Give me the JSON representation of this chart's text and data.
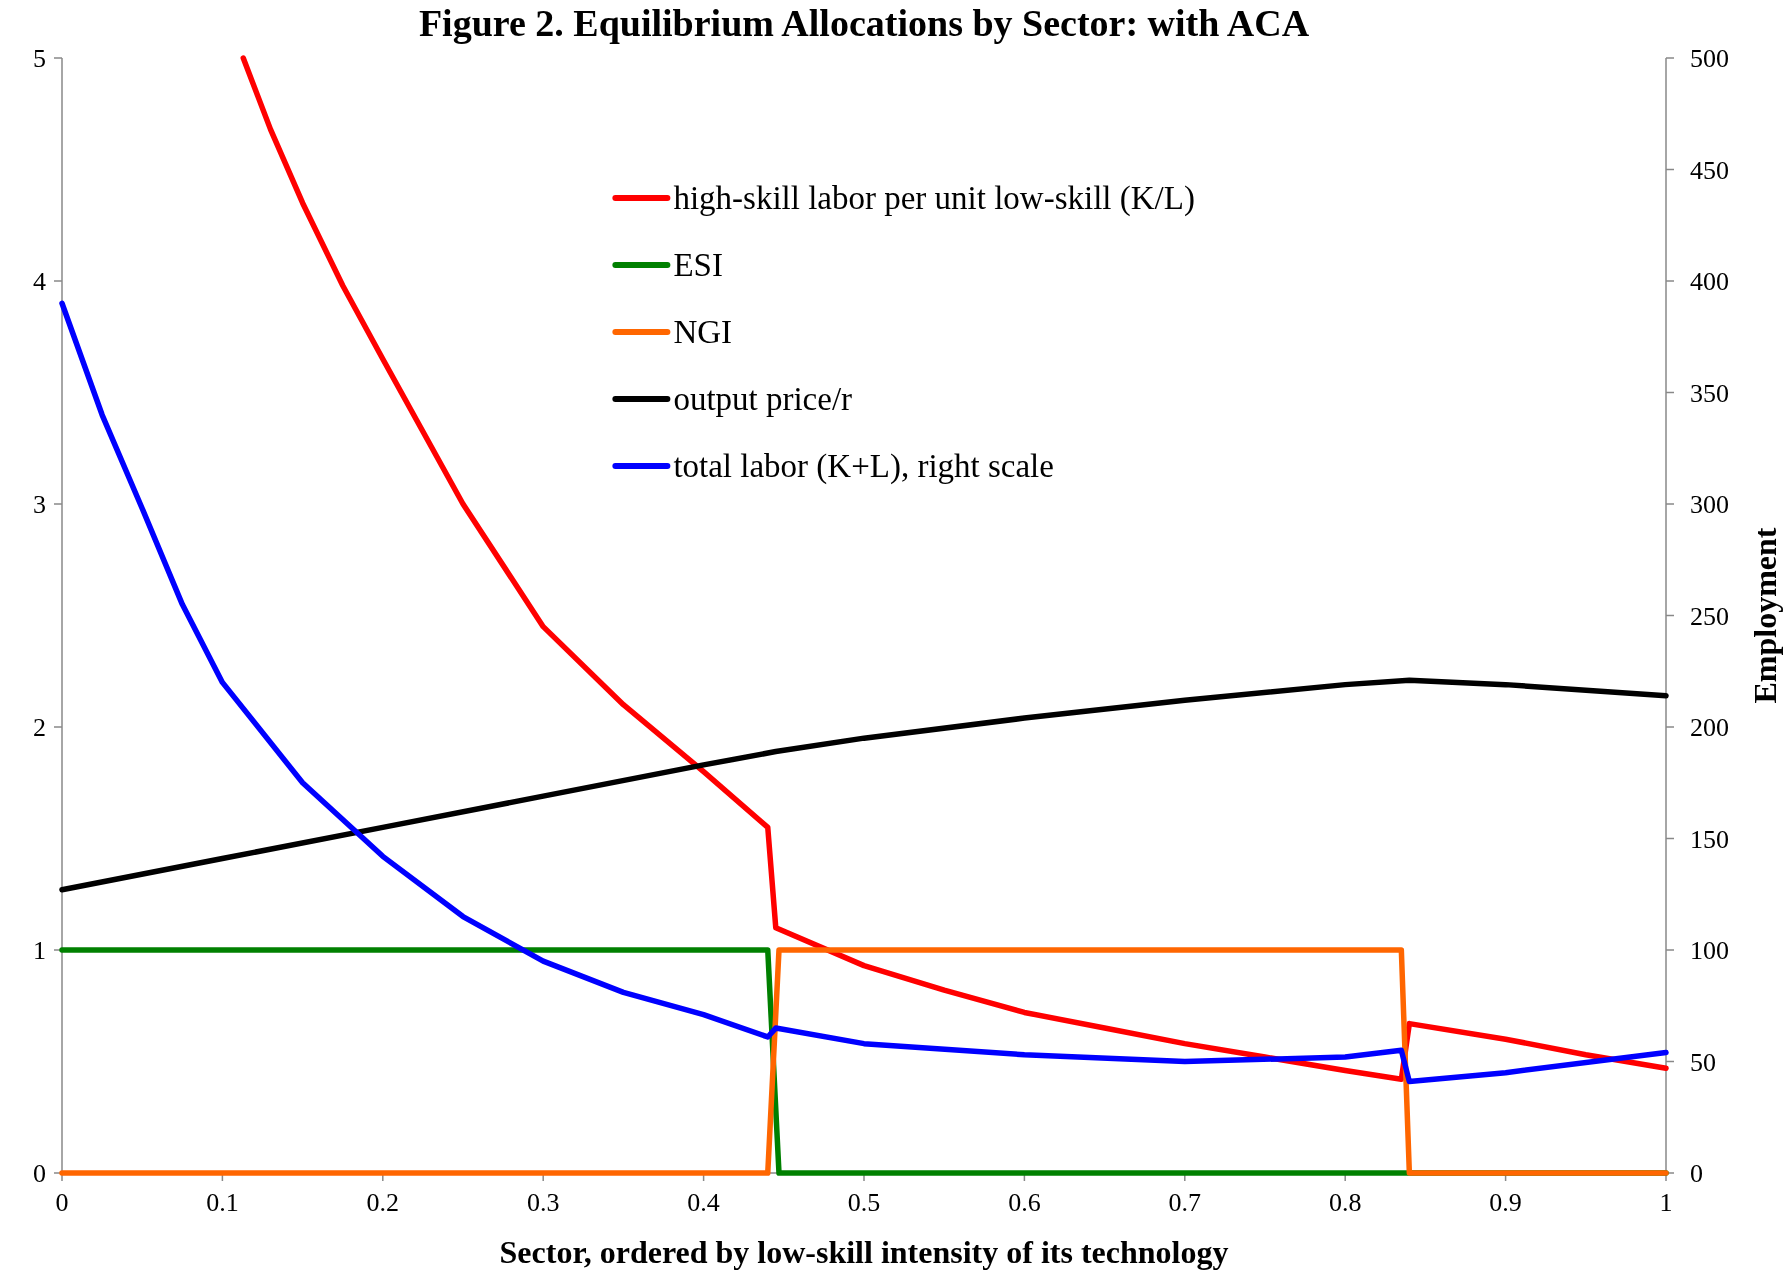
{
  "chart_data": {
    "type": "line",
    "title": "Figure 2.  Equilibrium Allocations by Sector: with ACA",
    "xlabel": "Sector, ordered by low-skill intensity of its technology",
    "y2label": "Employment",
    "xlim": [
      0,
      1
    ],
    "xticks": [
      0,
      0.1,
      0.2,
      0.3,
      0.4,
      0.5,
      0.6,
      0.7,
      0.8,
      0.9,
      1
    ],
    "ylim": [
      0,
      5
    ],
    "yticks": [
      0,
      1,
      2,
      3,
      4,
      5
    ],
    "y2lim": [
      0,
      500
    ],
    "y2ticks": [
      0,
      50,
      100,
      150,
      200,
      250,
      300,
      350,
      400,
      450,
      500
    ],
    "grid": false,
    "legend": "top",
    "marker": "none",
    "line_style": "solid",
    "series": [
      {
        "name": "high-skill labor per unit low-skill (K/L)",
        "color": "#ff0000",
        "x": [
          0.113,
          0.13,
          0.15,
          0.175,
          0.2,
          0.25,
          0.3,
          0.35,
          0.4,
          0.44,
          0.445,
          0.5,
          0.55,
          0.6,
          0.65,
          0.7,
          0.75,
          0.8,
          0.835,
          0.84,
          0.9,
          0.95,
          1
        ],
        "values": [
          5.0,
          4.68,
          4.35,
          3.98,
          3.65,
          3.0,
          2.45,
          2.1,
          1.8,
          1.55,
          1.1,
          0.93,
          0.82,
          0.72,
          0.65,
          0.58,
          0.52,
          0.46,
          0.42,
          0.67,
          0.6,
          0.53,
          0.47
        ]
      },
      {
        "name": "ESI",
        "color": "#008000",
        "x": [
          0,
          0.44,
          0.447,
          1
        ],
        "values": [
          1,
          1,
          0,
          0
        ]
      },
      {
        "name": "NGI",
        "color": "#ff6600",
        "x": [
          0,
          0.44,
          0.447,
          0.835,
          0.84,
          1
        ],
        "values": [
          0,
          0,
          1,
          1,
          0,
          0
        ]
      },
      {
        "name": "output price/r",
        "color": "#000000",
        "x": [
          0,
          0.1,
          0.2,
          0.3,
          0.4,
          0.445,
          0.5,
          0.6,
          0.7,
          0.8,
          0.84,
          0.9,
          1
        ],
        "values": [
          1.27,
          1.41,
          1.55,
          1.69,
          1.83,
          1.89,
          1.95,
          2.04,
          2.12,
          2.19,
          2.21,
          2.19,
          2.14
        ]
      },
      {
        "name": "total labor (K+L), right scale",
        "color": "#0000ff",
        "axis": "y2",
        "x": [
          0,
          0.025,
          0.05,
          0.075,
          0.1,
          0.15,
          0.2,
          0.25,
          0.3,
          0.35,
          0.4,
          0.44,
          0.445,
          0.5,
          0.6,
          0.7,
          0.8,
          0.835,
          0.84,
          0.9,
          1
        ],
        "values": [
          390,
          340,
          298,
          255,
          220,
          175,
          142,
          115,
          95,
          81,
          71,
          61,
          65,
          58,
          53,
          50,
          52,
          55,
          41,
          45,
          54
        ]
      }
    ]
  }
}
